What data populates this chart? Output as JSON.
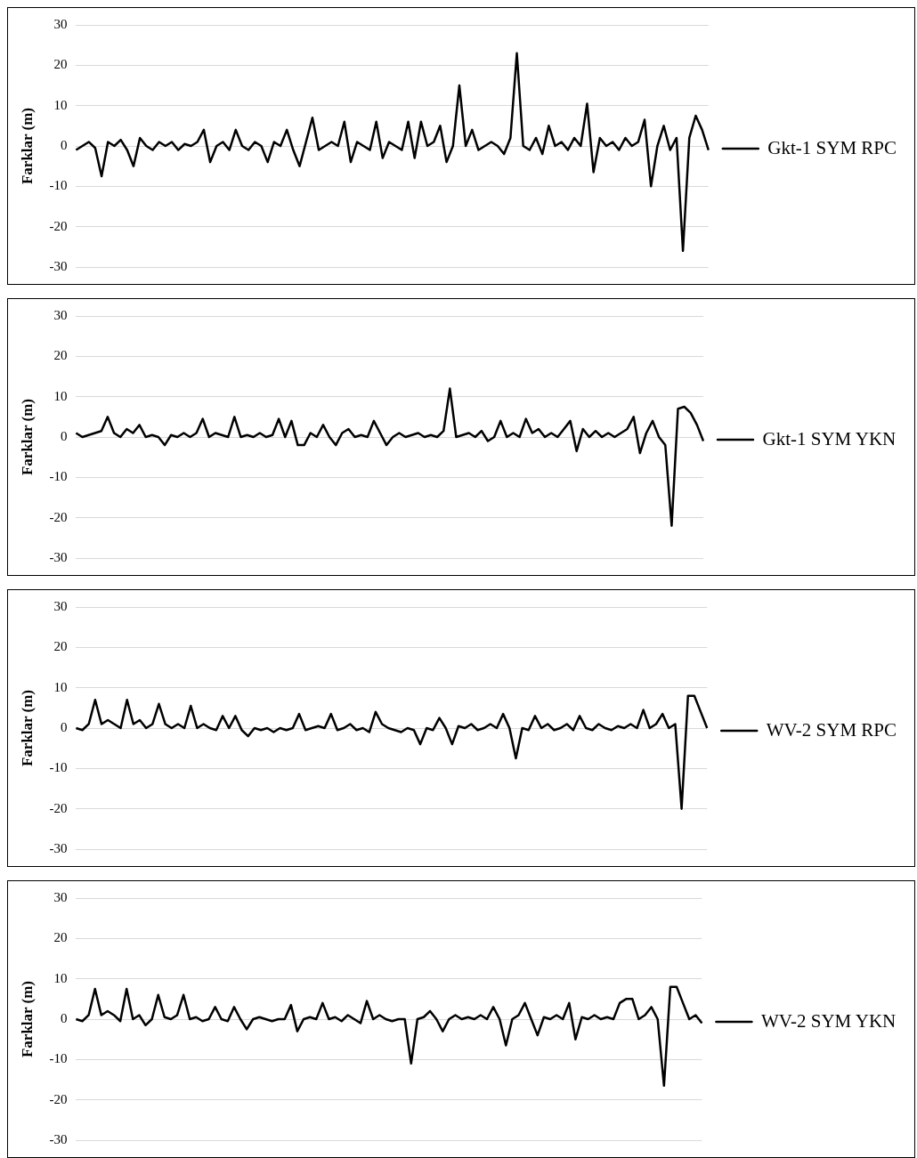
{
  "chart_data": [
    {
      "type": "line",
      "ylabel": "Farklar (m)",
      "ylim": [
        -30,
        30
      ],
      "yticks": [
        -30,
        -20,
        -10,
        0,
        10,
        20,
        30
      ],
      "grid": "y",
      "legend": "right",
      "tick_labels": "y",
      "marker": "none",
      "categories": [
        null,
        null,
        null,
        null,
        null,
        null,
        null,
        null,
        null,
        null,
        null,
        null,
        null,
        null,
        null,
        null,
        null,
        null,
        null,
        null,
        null,
        null,
        null,
        null,
        null,
        null,
        null,
        null,
        null,
        null,
        null,
        null,
        null,
        null,
        null,
        null,
        null,
        null,
        null,
        null,
        null,
        null,
        null,
        null,
        null,
        null,
        null,
        null,
        null,
        null,
        null,
        null,
        null,
        null,
        null,
        null,
        null,
        null,
        null,
        null,
        null,
        null,
        null,
        null,
        null,
        null,
        null,
        null,
        null,
        null,
        null,
        null,
        null,
        null,
        null,
        null,
        null,
        null,
        null,
        null,
        null,
        null,
        null,
        null,
        null,
        null,
        null,
        null,
        null,
        null,
        null,
        null,
        null,
        null,
        null,
        null,
        null,
        null,
        null,
        null
      ],
      "series": [
        {
          "name": "Gkt-1 SYM RPC",
          "color": "#000000",
          "values": [
            -1,
            0,
            1,
            -0.5,
            -7.5,
            1,
            0,
            1.5,
            -1,
            -5,
            2,
            0,
            -1,
            1,
            0,
            1,
            -1,
            0.5,
            0,
            1,
            4,
            -4,
            0,
            1,
            -1,
            4,
            0,
            -1,
            1,
            0,
            -4,
            1,
            0,
            4,
            -1,
            -5,
            1,
            7,
            -1,
            0,
            1,
            0,
            6,
            -4,
            1,
            0,
            -1,
            6,
            -3,
            1,
            0,
            -1,
            6,
            -3,
            6,
            0,
            1,
            5,
            -4,
            0,
            15,
            0,
            4,
            -1,
            0,
            1,
            0,
            -2,
            2,
            23,
            0,
            -1,
            2,
            -2,
            5,
            0,
            1,
            -1,
            2,
            0,
            10.5,
            -6.5,
            2,
            0,
            1,
            -1,
            2,
            0,
            1,
            6.5,
            -10,
            0,
            5,
            -1,
            2,
            -26,
            2,
            7.5,
            4,
            -1
          ]
        }
      ]
    },
    {
      "type": "line",
      "ylabel": "Farklar (m)",
      "ylim": [
        -30,
        30
      ],
      "yticks": [
        -30,
        -20,
        -10,
        0,
        10,
        20,
        30
      ],
      "grid": "y",
      "legend": "right",
      "tick_labels": "y",
      "marker": "none",
      "categories": [
        null,
        null,
        null,
        null,
        null,
        null,
        null,
        null,
        null,
        null,
        null,
        null,
        null,
        null,
        null,
        null,
        null,
        null,
        null,
        null,
        null,
        null,
        null,
        null,
        null,
        null,
        null,
        null,
        null,
        null,
        null,
        null,
        null,
        null,
        null,
        null,
        null,
        null,
        null,
        null,
        null,
        null,
        null,
        null,
        null,
        null,
        null,
        null,
        null,
        null,
        null,
        null,
        null,
        null,
        null,
        null,
        null,
        null,
        null,
        null,
        null,
        null,
        null,
        null,
        null,
        null,
        null,
        null,
        null,
        null,
        null,
        null,
        null,
        null,
        null,
        null,
        null,
        null,
        null,
        null,
        null,
        null,
        null,
        null,
        null,
        null,
        null,
        null,
        null,
        null,
        null,
        null,
        null,
        null,
        null,
        null,
        null,
        null,
        null,
        null
      ],
      "series": [
        {
          "name": "Gkt-1 SYM YKN",
          "color": "#000000",
          "values": [
            1,
            0,
            0.5,
            1,
            1.5,
            5,
            1,
            0,
            2,
            1,
            3,
            0,
            0.5,
            0,
            -2,
            0.5,
            0,
            1,
            0,
            1,
            4.5,
            0,
            1,
            0.5,
            0,
            5,
            0,
            0.5,
            0,
            1,
            0,
            0.5,
            4.5,
            0,
            4,
            -2,
            -2,
            1,
            0,
            3,
            0,
            -2,
            1,
            2,
            0,
            0.5,
            0,
            4,
            1,
            -2,
            0,
            1,
            0,
            0.5,
            1,
            0,
            0.5,
            0,
            1.5,
            12,
            0,
            0.5,
            1,
            0,
            1.5,
            -1,
            0,
            4,
            0,
            1,
            0,
            4.5,
            1,
            2,
            0,
            1,
            0,
            2,
            4,
            -3.5,
            2,
            0,
            1.5,
            0,
            1,
            0,
            1,
            2,
            5,
            -4,
            1,
            4,
            0,
            -2,
            -22,
            7,
            7.5,
            6,
            3,
            -1
          ]
        }
      ]
    },
    {
      "type": "line",
      "ylabel": "Farklar (m)",
      "ylim": [
        -30,
        30
      ],
      "yticks": [
        -30,
        -20,
        -10,
        0,
        10,
        20,
        30
      ],
      "grid": "y",
      "legend": "right",
      "tick_labels": "y",
      "marker": "none",
      "categories": [
        null,
        null,
        null,
        null,
        null,
        null,
        null,
        null,
        null,
        null,
        null,
        null,
        null,
        null,
        null,
        null,
        null,
        null,
        null,
        null,
        null,
        null,
        null,
        null,
        null,
        null,
        null,
        null,
        null,
        null,
        null,
        null,
        null,
        null,
        null,
        null,
        null,
        null,
        null,
        null,
        null,
        null,
        null,
        null,
        null,
        null,
        null,
        null,
        null,
        null,
        null,
        null,
        null,
        null,
        null,
        null,
        null,
        null,
        null,
        null,
        null,
        null,
        null,
        null,
        null,
        null,
        null,
        null,
        null,
        null,
        null,
        null,
        null,
        null,
        null,
        null,
        null,
        null,
        null,
        null,
        null,
        null,
        null,
        null,
        null,
        null,
        null,
        null,
        null,
        null,
        null,
        null,
        null,
        null,
        null,
        null,
        null,
        null,
        null,
        null
      ],
      "series": [
        {
          "name": "WV-2 SYM RPC",
          "color": "#000000",
          "values": [
            0,
            -0.5,
            1,
            7,
            1,
            2,
            1,
            0,
            7,
            1,
            2,
            0,
            1,
            6,
            1,
            0,
            1,
            0,
            5.5,
            0,
            1,
            0,
            -0.5,
            3,
            0,
            3,
            -0.5,
            -2,
            0,
            -0.5,
            0,
            -1,
            0,
            -0.5,
            0,
            3.5,
            -0.5,
            0,
            0.5,
            0,
            3.5,
            -0.5,
            0,
            1,
            -0.5,
            0,
            -1,
            4,
            1,
            0,
            -0.5,
            -1,
            0,
            -0.5,
            -4,
            0,
            -0.5,
            2.5,
            0,
            -4,
            0.5,
            0,
            1,
            -0.5,
            0,
            1,
            0,
            3.5,
            0,
            -7.5,
            0,
            -0.5,
            3,
            0,
            1,
            -0.5,
            0,
            1,
            -0.5,
            3,
            0,
            -0.5,
            1,
            0,
            -0.5,
            0.5,
            0,
            1,
            0,
            4.5,
            0,
            1,
            3.5,
            0,
            1,
            -20,
            8,
            8,
            4,
            0
          ]
        }
      ]
    },
    {
      "type": "line",
      "ylabel": "Farklar (m)",
      "ylim": [
        -30,
        30
      ],
      "yticks": [
        -30,
        -20,
        -10,
        0,
        10,
        20,
        30
      ],
      "grid": "y",
      "legend": "right",
      "tick_labels": "y",
      "marker": "none",
      "categories": [
        null,
        null,
        null,
        null,
        null,
        null,
        null,
        null,
        null,
        null,
        null,
        null,
        null,
        null,
        null,
        null,
        null,
        null,
        null,
        null,
        null,
        null,
        null,
        null,
        null,
        null,
        null,
        null,
        null,
        null,
        null,
        null,
        null,
        null,
        null,
        null,
        null,
        null,
        null,
        null,
        null,
        null,
        null,
        null,
        null,
        null,
        null,
        null,
        null,
        null,
        null,
        null,
        null,
        null,
        null,
        null,
        null,
        null,
        null,
        null,
        null,
        null,
        null,
        null,
        null,
        null,
        null,
        null,
        null,
        null,
        null,
        null,
        null,
        null,
        null,
        null,
        null,
        null,
        null,
        null,
        null,
        null,
        null,
        null,
        null,
        null,
        null,
        null,
        null,
        null,
        null,
        null,
        null,
        null,
        null,
        null,
        null,
        null,
        null,
        null
      ],
      "series": [
        {
          "name": "WV-2 SYM YKN",
          "color": "#000000",
          "values": [
            0,
            -0.5,
            1,
            7.5,
            1,
            2,
            1,
            -0.5,
            7.5,
            0,
            1,
            -1.5,
            0,
            6,
            0.5,
            0,
            1,
            6,
            0,
            0.5,
            -0.5,
            0,
            3,
            0,
            -0.5,
            3,
            0,
            -2.5,
            0,
            0.5,
            0,
            -0.5,
            0,
            0,
            3.5,
            -3,
            0,
            0.5,
            0,
            4,
            0,
            0.5,
            -0.5,
            1,
            0,
            -1,
            4.5,
            0,
            1,
            0,
            -0.5,
            0,
            0,
            -11,
            0,
            0.5,
            2,
            0,
            -3,
            0,
            1,
            0,
            0.5,
            0,
            1,
            0,
            3,
            0,
            -6.5,
            0,
            1,
            4,
            0,
            -4,
            0.5,
            0,
            1,
            0,
            4,
            -5,
            0.5,
            0,
            1,
            0,
            0.5,
            0,
            4,
            5,
            5,
            0,
            1,
            3,
            0,
            -16.5,
            8,
            8,
            4,
            0,
            1,
            -1
          ]
        }
      ]
    }
  ]
}
